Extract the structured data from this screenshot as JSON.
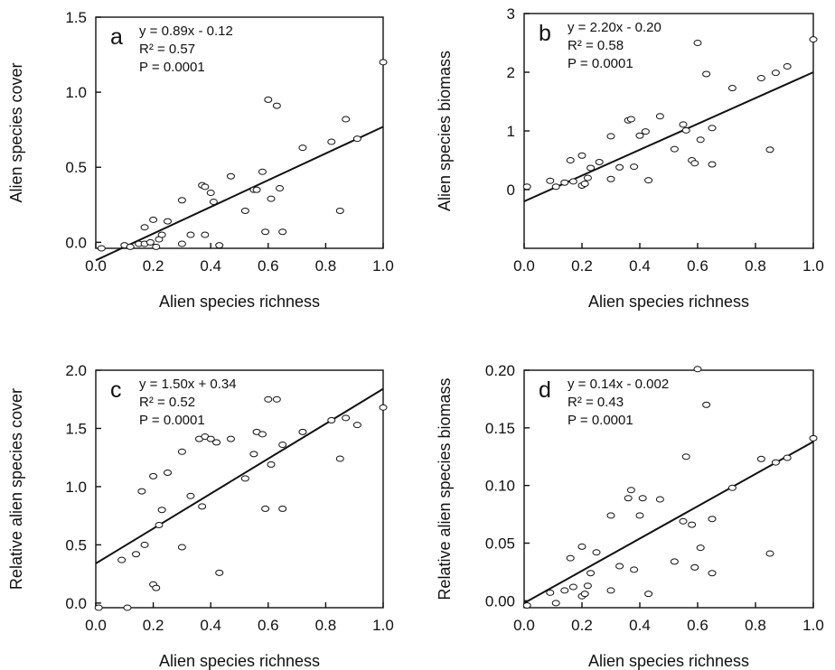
{
  "chart_data": [
    {
      "type": "scatter",
      "panel": "a",
      "xlabel": "Alien species richness",
      "ylabel": "Alien species cover",
      "xlim": [
        0,
        1
      ],
      "ylim": [
        -0.04,
        1.5
      ],
      "xticks": [
        "0.0",
        "0.2",
        "0.4",
        "0.6",
        "0.8",
        "1.0"
      ],
      "yticks": [
        "0.0",
        "0.5",
        "1.0",
        "1.5"
      ],
      "annotations": [
        "y = 0.89x - 0.12",
        "R² = 0.57",
        "P = 0.0001"
      ],
      "fit": {
        "slope": 0.89,
        "intercept": -0.12
      },
      "points": [
        [
          0.02,
          -0.04
        ],
        [
          0.1,
          -0.02
        ],
        [
          0.12,
          -0.03
        ],
        [
          0.15,
          -0.01
        ],
        [
          0.17,
          -0.01
        ],
        [
          0.19,
          0.0
        ],
        [
          0.2,
          0.15
        ],
        [
          0.21,
          -0.03
        ],
        [
          0.22,
          0.02
        ],
        [
          0.23,
          0.05
        ],
        [
          0.25,
          0.14
        ],
        [
          0.17,
          0.1
        ],
        [
          0.3,
          0.28
        ],
        [
          0.3,
          -0.01
        ],
        [
          0.33,
          0.05
        ],
        [
          0.37,
          0.38
        ],
        [
          0.38,
          0.37
        ],
        [
          0.38,
          0.05
        ],
        [
          0.4,
          0.33
        ],
        [
          0.41,
          0.27
        ],
        [
          0.43,
          -0.02
        ],
        [
          0.47,
          0.44
        ],
        [
          0.52,
          0.21
        ],
        [
          0.55,
          0.35
        ],
        [
          0.56,
          0.35
        ],
        [
          0.58,
          0.47
        ],
        [
          0.59,
          0.07
        ],
        [
          0.6,
          0.95
        ],
        [
          0.61,
          0.29
        ],
        [
          0.63,
          0.91
        ],
        [
          0.64,
          0.36
        ],
        [
          0.65,
          0.07
        ],
        [
          0.72,
          0.63
        ],
        [
          0.82,
          0.67
        ],
        [
          0.85,
          0.21
        ],
        [
          0.87,
          0.82
        ],
        [
          0.91,
          0.69
        ],
        [
          1.0,
          1.2
        ]
      ]
    },
    {
      "type": "scatter",
      "panel": "b",
      "xlabel": "Alien species richness",
      "ylabel": "Alien species biomass",
      "xlim": [
        0,
        1
      ],
      "ylim": [
        -1,
        3
      ],
      "xticks": [
        "0.0",
        "0.2",
        "0.4",
        "0.6",
        "0.8",
        "1.0"
      ],
      "yticks": [
        "0",
        "1",
        "2",
        "3"
      ],
      "annotations": [
        "y = 2.20x - 0.20",
        "R² = 0.58",
        "P = 0.0001"
      ],
      "fit": {
        "slope": 2.2,
        "intercept": -0.2
      },
      "points": [
        [
          0.01,
          0.05
        ],
        [
          0.09,
          0.15
        ],
        [
          0.11,
          0.05
        ],
        [
          0.14,
          0.12
        ],
        [
          0.16,
          0.5
        ],
        [
          0.17,
          0.14
        ],
        [
          0.2,
          0.07
        ],
        [
          0.2,
          0.58
        ],
        [
          0.21,
          0.1
        ],
        [
          0.22,
          0.2
        ],
        [
          0.23,
          0.37
        ],
        [
          0.26,
          0.47
        ],
        [
          0.3,
          0.18
        ],
        [
          0.3,
          0.91
        ],
        [
          0.33,
          0.38
        ],
        [
          0.36,
          1.18
        ],
        [
          0.37,
          1.2
        ],
        [
          0.38,
          0.39
        ],
        [
          0.4,
          0.92
        ],
        [
          0.42,
          0.99
        ],
        [
          0.43,
          0.16
        ],
        [
          0.47,
          1.25
        ],
        [
          0.52,
          0.69
        ],
        [
          0.55,
          1.11
        ],
        [
          0.56,
          1.01
        ],
        [
          0.58,
          0.5
        ],
        [
          0.59,
          0.45
        ],
        [
          0.6,
          2.5
        ],
        [
          0.61,
          0.85
        ],
        [
          0.63,
          1.97
        ],
        [
          0.65,
          1.05
        ],
        [
          0.65,
          0.43
        ],
        [
          0.72,
          1.73
        ],
        [
          0.82,
          1.9
        ],
        [
          0.85,
          0.68
        ],
        [
          0.87,
          1.99
        ],
        [
          0.91,
          2.1
        ],
        [
          1.0,
          2.56
        ]
      ]
    },
    {
      "type": "scatter",
      "panel": "c",
      "xlabel": "Alien species richness",
      "ylabel": "Relative alien species cover",
      "xlim": [
        0,
        1
      ],
      "ylim": [
        -0.04,
        2.0
      ],
      "xticks": [
        "0.0",
        "0.2",
        "0.4",
        "0.6",
        "0.8",
        "1.0"
      ],
      "yticks": [
        "0.0",
        "0.5",
        "1.0",
        "1.5",
        "2.0"
      ],
      "annotations": [
        "y = 1.50x + 0.34",
        "R² = 0.52",
        "P = 0.0001"
      ],
      "fit": {
        "slope": 1.5,
        "intercept": 0.34
      },
      "points": [
        [
          0.01,
          -0.04
        ],
        [
          0.09,
          0.37
        ],
        [
          0.11,
          -0.04
        ],
        [
          0.14,
          0.42
        ],
        [
          0.16,
          0.96
        ],
        [
          0.17,
          0.5
        ],
        [
          0.2,
          1.09
        ],
        [
          0.2,
          0.16
        ],
        [
          0.21,
          0.13
        ],
        [
          0.22,
          0.67
        ],
        [
          0.23,
          0.8
        ],
        [
          0.25,
          1.12
        ],
        [
          0.3,
          0.48
        ],
        [
          0.3,
          1.3
        ],
        [
          0.33,
          0.92
        ],
        [
          0.36,
          1.41
        ],
        [
          0.37,
          0.83
        ],
        [
          0.38,
          1.43
        ],
        [
          0.4,
          1.41
        ],
        [
          0.42,
          1.38
        ],
        [
          0.43,
          0.26
        ],
        [
          0.47,
          1.41
        ],
        [
          0.52,
          1.07
        ],
        [
          0.55,
          1.28
        ],
        [
          0.56,
          1.47
        ],
        [
          0.58,
          1.45
        ],
        [
          0.59,
          0.81
        ],
        [
          0.6,
          1.75
        ],
        [
          0.61,
          1.19
        ],
        [
          0.63,
          1.75
        ],
        [
          0.65,
          1.36
        ],
        [
          0.65,
          0.81
        ],
        [
          0.72,
          1.47
        ],
        [
          0.82,
          1.57
        ],
        [
          0.85,
          1.24
        ],
        [
          0.87,
          1.59
        ],
        [
          0.91,
          1.53
        ],
        [
          1.0,
          1.68
        ]
      ]
    },
    {
      "type": "scatter",
      "panel": "d",
      "xlabel": "Alien species richness",
      "ylabel": "Relative alien species biomass",
      "xlim": [
        0,
        1
      ],
      "ylim": [
        -0.006,
        0.2
      ],
      "xticks": [
        "0.0",
        "0.2",
        "0.4",
        "0.6",
        "0.8",
        "1.0"
      ],
      "yticks": [
        "0.00",
        "0.05",
        "0.10",
        "0.15",
        "0.20"
      ],
      "annotations": [
        "y = 0.14x - 0.002",
        "R² = 0.43",
        "P = 0.0001"
      ],
      "fit": {
        "slope": 0.14,
        "intercept": -0.002
      },
      "points": [
        [
          0.01,
          -0.004
        ],
        [
          0.09,
          0.007
        ],
        [
          0.11,
          -0.002
        ],
        [
          0.14,
          0.009
        ],
        [
          0.16,
          0.037
        ],
        [
          0.17,
          0.012
        ],
        [
          0.2,
          0.047
        ],
        [
          0.2,
          0.004
        ],
        [
          0.21,
          0.006
        ],
        [
          0.22,
          0.013
        ],
        [
          0.23,
          0.024
        ],
        [
          0.25,
          0.042
        ],
        [
          0.3,
          0.074
        ],
        [
          0.3,
          0.009
        ],
        [
          0.33,
          0.03
        ],
        [
          0.36,
          0.089
        ],
        [
          0.37,
          0.096
        ],
        [
          0.38,
          0.027
        ],
        [
          0.4,
          0.074
        ],
        [
          0.41,
          0.089
        ],
        [
          0.43,
          0.006
        ],
        [
          0.47,
          0.088
        ],
        [
          0.52,
          0.034
        ],
        [
          0.55,
          0.069
        ],
        [
          0.56,
          0.125
        ],
        [
          0.58,
          0.066
        ],
        [
          0.59,
          0.029
        ],
        [
          0.6,
          0.201
        ],
        [
          0.61,
          0.046
        ],
        [
          0.63,
          0.17
        ],
        [
          0.65,
          0.071
        ],
        [
          0.65,
          0.024
        ],
        [
          0.72,
          0.098
        ],
        [
          0.82,
          0.123
        ],
        [
          0.85,
          0.041
        ],
        [
          0.87,
          0.12
        ],
        [
          0.91,
          0.124
        ],
        [
          1.0,
          0.141
        ]
      ]
    }
  ]
}
